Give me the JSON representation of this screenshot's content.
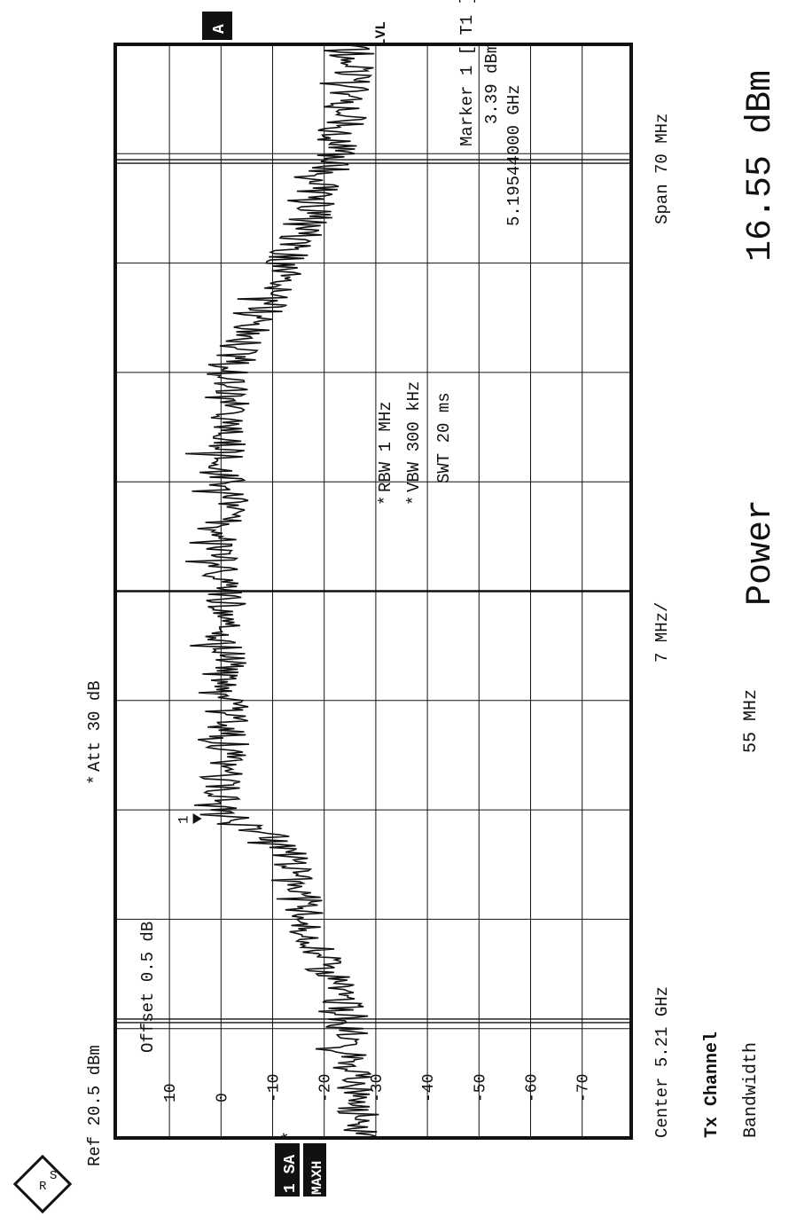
{
  "header": {
    "ref": "Ref  20.5 dBm",
    "offset": "Offset  0.5 dB",
    "att": "Att  30 dB",
    "att_star": "*",
    "rbw": "RBW 1 MHz",
    "vbw": "VBW 300 kHz",
    "swt": "SWT 20 ms",
    "rbw_star": "*",
    "vbw_star": "*",
    "marker_title": "Marker 1 [ T1 ]",
    "marker_level": "3.39 dBm",
    "marker_freq": "5.19544000 GHz"
  },
  "footer": {
    "center": "Center 5.21 GHz",
    "div": "7 MHz/",
    "span": "Span 70 MHz"
  },
  "badges": {
    "mode_a": "A",
    "trace": "1 SA",
    "trace_star": "*",
    "maxh": "MAXH",
    "lvl": "LVL",
    "marker_label": "1"
  },
  "results": {
    "tx_channel": "Tx Channel",
    "bandwidth_label": "Bandwidth",
    "bandwidth_value": "55 MHz",
    "power_label": "Power",
    "power_value": "16.55 dBm"
  },
  "chart_data": {
    "type": "line",
    "x_unit": "GHz",
    "y_unit": "dBm",
    "xlim": [
      5.175,
      5.245
    ],
    "ylim": [
      -79.5,
      20.5
    ],
    "y_ticks": [
      10,
      0,
      -10,
      -20,
      -30,
      -40,
      -50,
      -60,
      -70
    ],
    "y_tick_labels": [
      "10",
      "0",
      "-10",
      "-20",
      "-30",
      "-40",
      "-50",
      "-60",
      "-70"
    ],
    "grid": true,
    "channel_lines": [
      5.1825,
      5.2375
    ],
    "marker": {
      "x": 5.19544,
      "y": 3.39
    },
    "series": [
      {
        "x": [
          5.175,
          5.178,
          5.181,
          5.1825,
          5.184,
          5.186,
          5.188,
          5.19,
          5.192,
          5.194,
          5.195,
          5.196,
          5.2,
          5.205,
          5.21,
          5.215,
          5.22,
          5.224,
          5.226,
          5.229,
          5.232,
          5.234,
          5.236,
          5.238,
          5.241,
          5.245
        ],
        "y": [
          -27,
          -26,
          -25,
          -24,
          -23,
          -20,
          -18,
          -16,
          -14,
          -12,
          -5,
          0,
          -1,
          -1,
          0,
          -1,
          -1,
          -2,
          -5,
          -10,
          -14,
          -18,
          -20,
          -22,
          -25,
          -26
        ]
      }
    ]
  }
}
